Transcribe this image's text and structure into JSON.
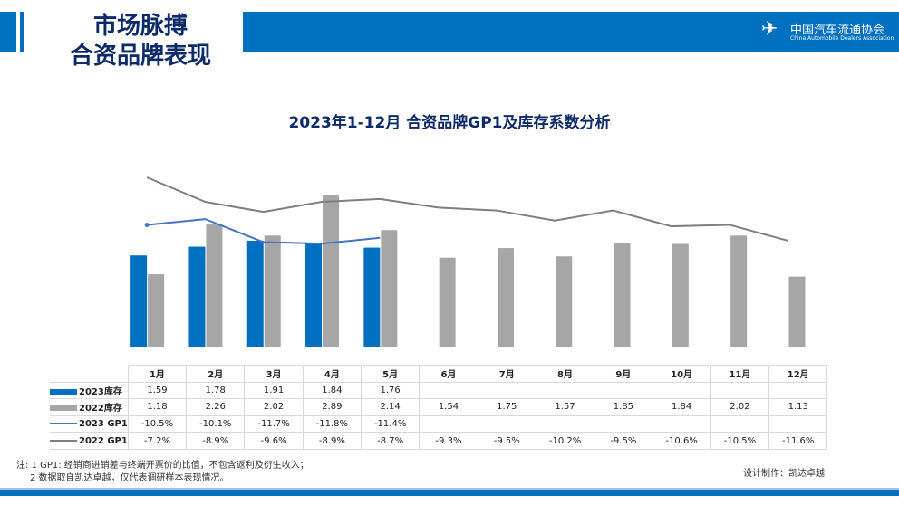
{
  "header": {
    "title_line1": "市场脉搏",
    "title_line2": "合资品牌表现",
    "logo_cn": "中国汽车流通协会",
    "logo_en": "China Automobile Dealers Association",
    "logo_mark": "CADA"
  },
  "chart_data": {
    "type": "bar+line",
    "title": "2023年1-12月 合资品牌GP1及库存系数分析",
    "categories": [
      "1月",
      "2月",
      "3月",
      "4月",
      "5月",
      "6月",
      "7月",
      "8月",
      "9月",
      "10月",
      "11月",
      "12月"
    ],
    "series": [
      {
        "name": "2023库存",
        "kind": "bar",
        "color": "#0070c0",
        "values": [
          1.59,
          1.78,
          1.91,
          1.84,
          1.76,
          null,
          null,
          null,
          null,
          null,
          null,
          null
        ],
        "labels": [
          "1.59",
          "1.78",
          "1.91",
          "1.84",
          "1.76",
          "",
          "",
          "",
          "",
          "",
          "",
          ""
        ]
      },
      {
        "name": "2022库存",
        "kind": "bar",
        "color": "#a6a6a6",
        "values": [
          1.18,
          2.26,
          2.02,
          2.89,
          2.14,
          1.54,
          1.75,
          1.57,
          1.85,
          1.84,
          2.02,
          1.13
        ],
        "labels": [
          "1.18",
          "2.26",
          "2.02",
          "2.89",
          "2.14",
          "1.54",
          "1.75",
          "1.57",
          "1.85",
          "1.84",
          "2.02",
          "1.13"
        ]
      },
      {
        "name": "2023 GP1",
        "kind": "line",
        "color": "#4472c4",
        "values": [
          -10.5,
          -10.1,
          -11.7,
          -11.8,
          -11.4,
          null,
          null,
          null,
          null,
          null,
          null,
          null
        ],
        "labels": [
          "-10.5%",
          "-10.1%",
          "-11.7%",
          "-11.8%",
          "-11.4%",
          "",
          "",
          "",
          "",
          "",
          "",
          ""
        ]
      },
      {
        "name": "2022 GP1",
        "kind": "line",
        "color": "#7f7f7f",
        "values": [
          -7.2,
          -8.9,
          -9.6,
          -8.9,
          -8.7,
          -9.3,
          -9.5,
          -10.2,
          -9.5,
          -10.6,
          -10.5,
          -11.6
        ],
        "labels": [
          "-7.2%",
          "-8.9%",
          "-9.6%",
          "-8.9%",
          "-8.7%",
          "-9.3%",
          "-9.5%",
          "-10.2%",
          "-9.5%",
          "-10.6%",
          "-10.5%",
          "-11.6%"
        ]
      }
    ],
    "legend": "data-table"
  },
  "notes": {
    "line1": "注: 1  GP1: 经销商进销差与终端开票价的比值，不包含返利及衍生收入；",
    "line2": "2 数据取自凯达卓越，仅代表调研样本表现情况。",
    "credit": "设计制作：凯达卓越"
  }
}
